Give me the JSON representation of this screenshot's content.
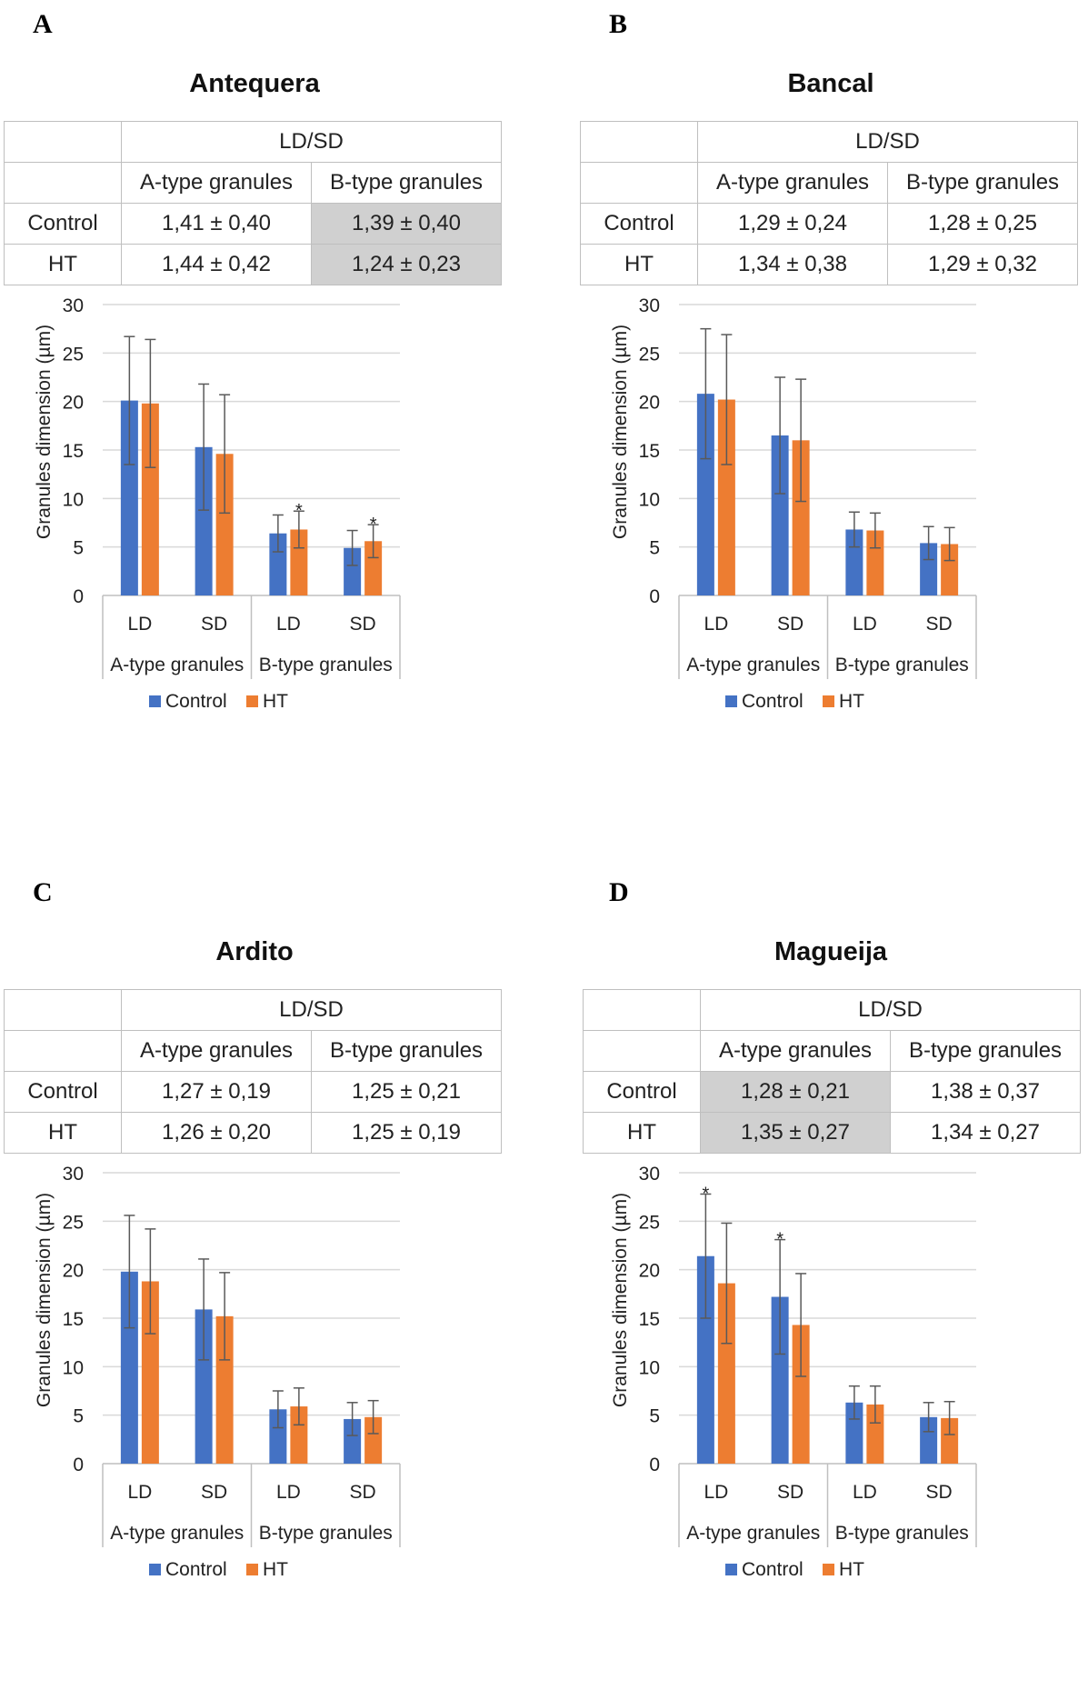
{
  "legend": {
    "control": "Control",
    "ht": "HT"
  },
  "colors": {
    "control": "#4472C4",
    "ht": "#ED7D31",
    "shade": "#d0d0d0",
    "error": "#595959"
  },
  "table_labels": {
    "header": "LD/SD",
    "a_type": "A-type granules",
    "b_type": "B-type granules",
    "control": "Control",
    "ht": "HT"
  },
  "panels": [
    {
      "letter": "A",
      "title": "Antequera",
      "table": {
        "control_a": "1,41 ± 0,40",
        "control_b": "1,39 ± 0,40",
        "ht_a": "1,44 ± 0,42",
        "ht_b": "1,24 ± 0,23",
        "shaded_column": "b"
      }
    },
    {
      "letter": "B",
      "title": "Bancal",
      "table": {
        "control_a": "1,29 ± 0,24",
        "control_b": "1,28 ± 0,25",
        "ht_a": "1,34 ± 0,38",
        "ht_b": "1,29 ± 0,32",
        "shaded_column": ""
      }
    },
    {
      "letter": "C",
      "title": "Ardito",
      "table": {
        "control_a": "1,27 ± 0,19",
        "control_b": "1,25 ± 0,21",
        "ht_a": "1,26 ± 0,20",
        "ht_b": "1,25 ± 0,19",
        "shaded_column": ""
      }
    },
    {
      "letter": "D",
      "title": "Magueija",
      "table": {
        "control_a": "1,28 ± 0,21",
        "control_b": "1,38 ± 0,37",
        "ht_a": "1,35 ± 0,27",
        "ht_b": "1,34 ± 0,27",
        "shaded_column": "a"
      }
    }
  ],
  "chart_data": [
    {
      "type": "bar",
      "title": "Antequera",
      "xlabel": "",
      "ylabel": "Granules dimension (µm)",
      "ylim": [
        0,
        30
      ],
      "yticks": [
        0,
        5,
        10,
        15,
        20,
        25,
        30
      ],
      "grid": true,
      "legend_position": "bottom",
      "categories": [
        "LD",
        "SD",
        "LD",
        "SD"
      ],
      "groups": [
        "A-type granules",
        "B-type granules"
      ],
      "series": [
        {
          "name": "Control",
          "values": [
            20.1,
            15.3,
            6.4,
            4.9
          ],
          "errors": [
            6.6,
            6.5,
            1.9,
            1.8
          ],
          "significant": [
            false,
            false,
            false,
            false
          ]
        },
        {
          "name": "HT",
          "values": [
            19.8,
            14.6,
            6.8,
            5.6
          ],
          "errors": [
            6.6,
            6.1,
            1.9,
            1.7
          ],
          "significant": [
            false,
            false,
            true,
            true
          ]
        }
      ],
      "significance_marker": "*"
    },
    {
      "type": "bar",
      "title": "Bancal",
      "xlabel": "",
      "ylabel": "Granules dimension (µm)",
      "ylim": [
        0,
        30
      ],
      "yticks": [
        0,
        5,
        10,
        15,
        20,
        25,
        30
      ],
      "grid": true,
      "legend_position": "bottom",
      "categories": [
        "LD",
        "SD",
        "LD",
        "SD"
      ],
      "groups": [
        "A-type granules",
        "B-type granules"
      ],
      "series": [
        {
          "name": "Control",
          "values": [
            20.8,
            16.5,
            6.8,
            5.4
          ],
          "errors": [
            6.7,
            6.0,
            1.8,
            1.7
          ],
          "significant": [
            false,
            false,
            false,
            false
          ]
        },
        {
          "name": "HT",
          "values": [
            20.2,
            16.0,
            6.7,
            5.3
          ],
          "errors": [
            6.7,
            6.3,
            1.8,
            1.7
          ],
          "significant": [
            false,
            false,
            false,
            false
          ]
        }
      ],
      "significance_marker": "*"
    },
    {
      "type": "bar",
      "title": "Ardito",
      "xlabel": "",
      "ylabel": "Granules dimension (µm)",
      "ylim": [
        0,
        30
      ],
      "yticks": [
        0,
        5,
        10,
        15,
        20,
        25,
        30
      ],
      "grid": true,
      "legend_position": "bottom",
      "categories": [
        "LD",
        "SD",
        "LD",
        "SD"
      ],
      "groups": [
        "A-type granules",
        "B-type granules"
      ],
      "series": [
        {
          "name": "Control",
          "values": [
            19.8,
            15.9,
            5.6,
            4.6
          ],
          "errors": [
            5.8,
            5.2,
            1.9,
            1.7
          ],
          "significant": [
            false,
            false,
            false,
            false
          ]
        },
        {
          "name": "HT",
          "values": [
            18.8,
            15.2,
            5.9,
            4.8
          ],
          "errors": [
            5.4,
            4.5,
            1.9,
            1.7
          ],
          "significant": [
            false,
            false,
            false,
            false
          ]
        }
      ],
      "significance_marker": "*"
    },
    {
      "type": "bar",
      "title": "Magueija",
      "xlabel": "",
      "ylabel": "Granules dimension (µm)",
      "ylim": [
        0,
        30
      ],
      "yticks": [
        0,
        5,
        10,
        15,
        20,
        25,
        30
      ],
      "grid": true,
      "legend_position": "bottom",
      "categories": [
        "LD",
        "SD",
        "LD",
        "SD"
      ],
      "groups": [
        "A-type granules",
        "B-type granules"
      ],
      "series": [
        {
          "name": "Control",
          "values": [
            21.4,
            17.2,
            6.3,
            4.8
          ],
          "errors": [
            6.4,
            5.9,
            1.7,
            1.5
          ],
          "significant": [
            true,
            true,
            false,
            false
          ]
        },
        {
          "name": "HT",
          "values": [
            18.6,
            14.3,
            6.1,
            4.7
          ],
          "errors": [
            6.2,
            5.3,
            1.9,
            1.7
          ],
          "significant": [
            false,
            false,
            false,
            false
          ]
        }
      ],
      "significance_marker": "*"
    }
  ]
}
